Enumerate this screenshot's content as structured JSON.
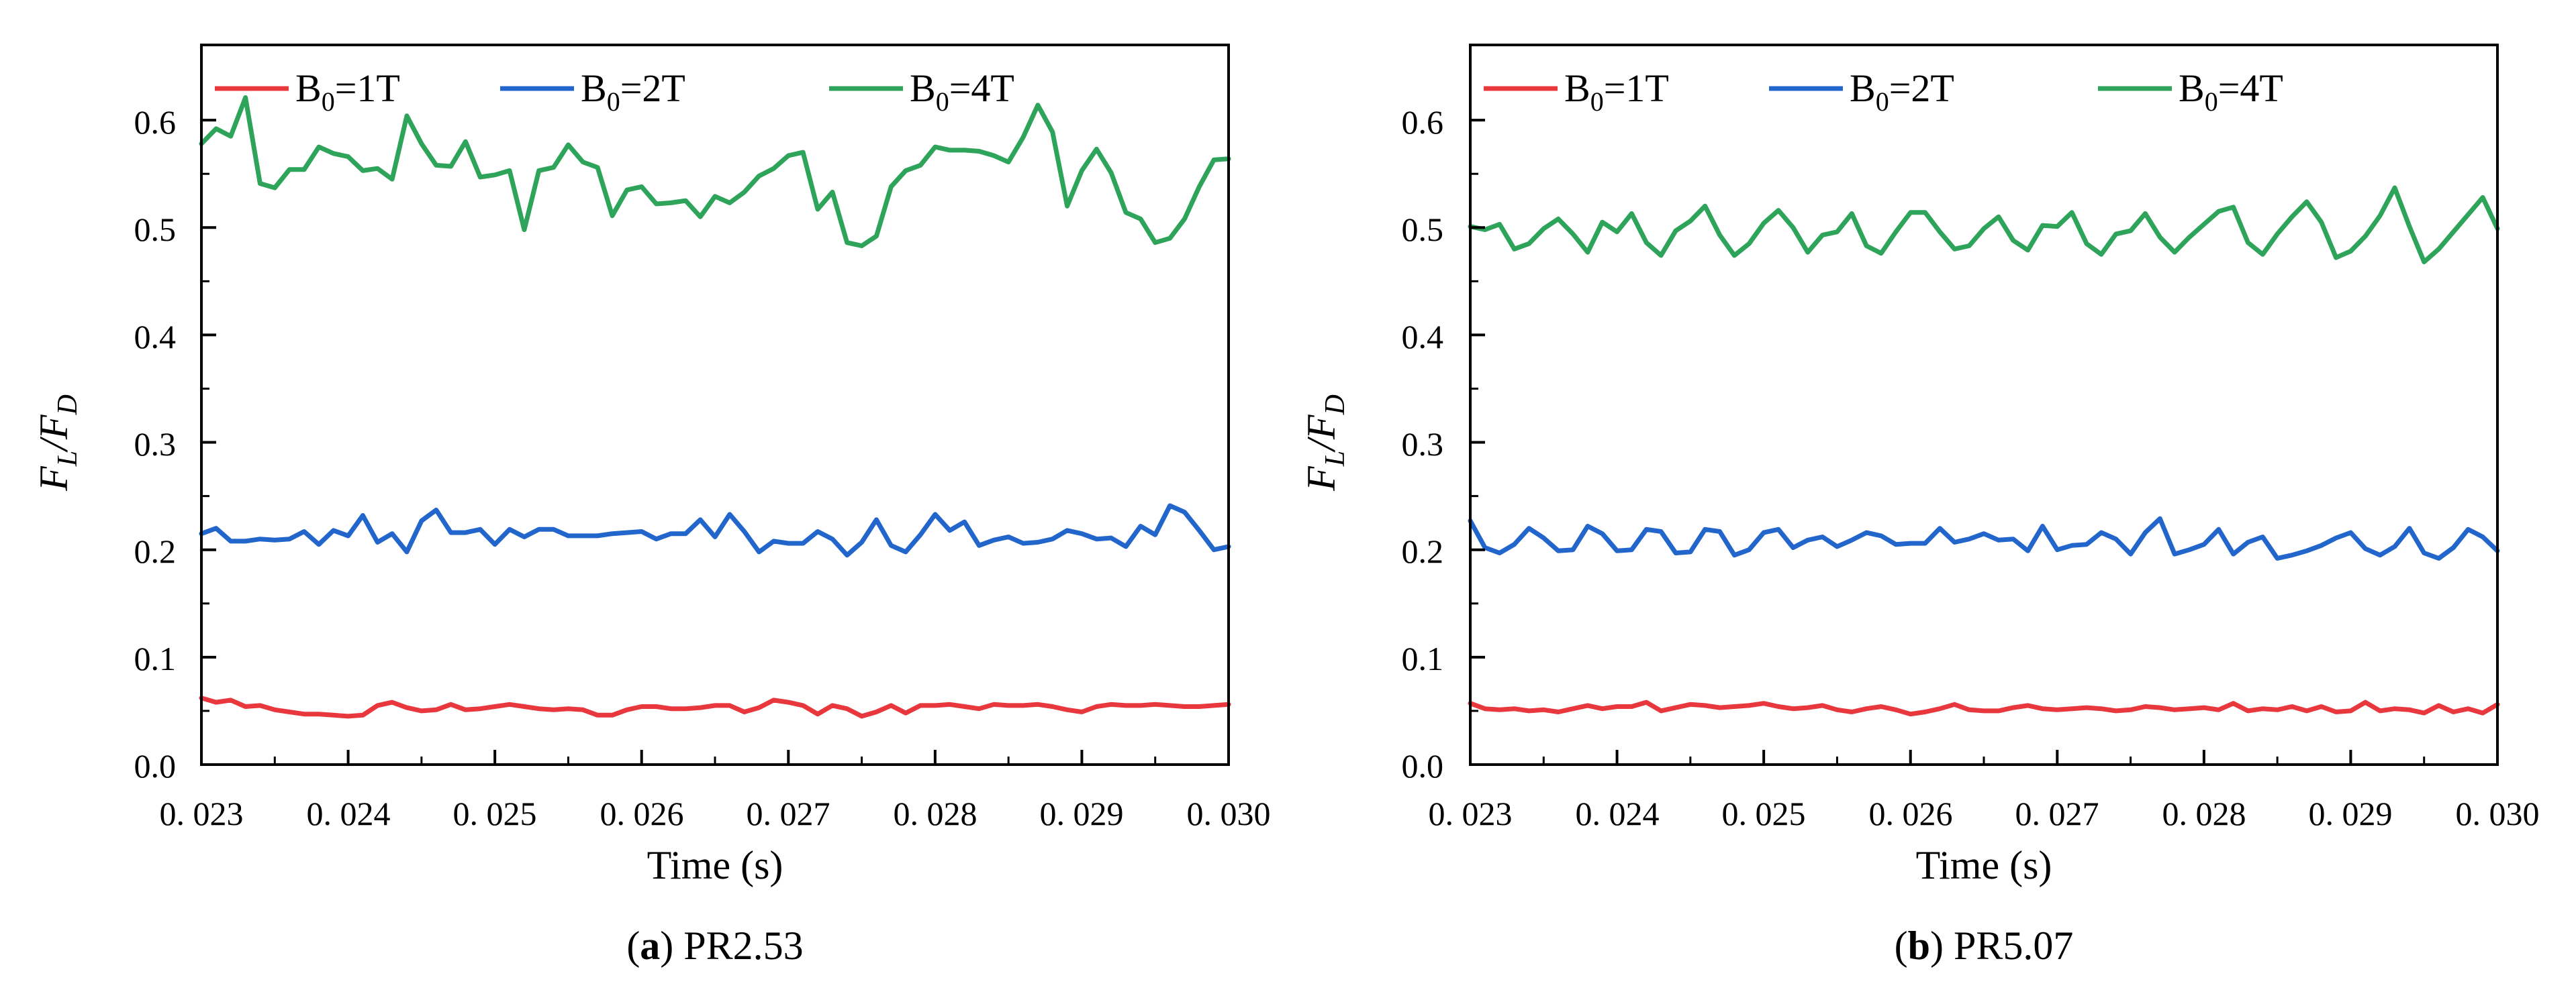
{
  "colors": {
    "B0_1T": "#e8383d",
    "B0_2T": "#2266cc",
    "B0_4T": "#2ea35a"
  },
  "chart_data": [
    {
      "id": "a",
      "type": "line",
      "caption": {
        "letter": "a",
        "text": "PR2.53"
      },
      "xlabel": "Time (s)",
      "ylabel": {
        "main": "F",
        "sub": "L",
        "slash": "/",
        "main2": "F",
        "sub2": "D"
      },
      "xlim": [
        0.023,
        0.03
      ],
      "ylim": [
        0.0,
        0.67
      ],
      "xticks": [
        {
          "value": 0.023,
          "label": "0. 023"
        },
        {
          "value": 0.024,
          "label": "0. 024"
        },
        {
          "value": 0.025,
          "label": "0. 025"
        },
        {
          "value": 0.026,
          "label": "0. 026"
        },
        {
          "value": 0.027,
          "label": "0. 027"
        },
        {
          "value": 0.028,
          "label": "0. 028"
        },
        {
          "value": 0.029,
          "label": "0. 029"
        },
        {
          "value": 0.03,
          "label": "0. 030"
        }
      ],
      "yticks": [
        {
          "value": 0.0,
          "label": "0.0"
        },
        {
          "value": 0.1,
          "label": "0.1"
        },
        {
          "value": 0.2,
          "label": "0.2"
        },
        {
          "value": 0.3,
          "label": "0.3"
        },
        {
          "value": 0.4,
          "label": "0.4"
        },
        {
          "value": 0.5,
          "label": "0.5"
        },
        {
          "value": 0.6,
          "label": "0.6"
        }
      ],
      "legend_position": "top",
      "x": [
        0.023,
        0.0231,
        0.0232,
        0.0233,
        0.0234,
        0.0235,
        0.0236,
        0.0237,
        0.0238,
        0.0239,
        0.024,
        0.0241,
        0.0242,
        0.0243,
        0.0244,
        0.0245,
        0.0246,
        0.0247,
        0.0248,
        0.0249,
        0.025,
        0.0251,
        0.0252,
        0.0253,
        0.0254,
        0.0255,
        0.0256,
        0.0257,
        0.0258,
        0.0259,
        0.026,
        0.0261,
        0.0262,
        0.0263,
        0.0264,
        0.0265,
        0.0266,
        0.0267,
        0.0268,
        0.0269,
        0.027,
        0.0271,
        0.0272,
        0.0273,
        0.0274,
        0.0275,
        0.0276,
        0.0277,
        0.0278,
        0.0279,
        0.028,
        0.0281,
        0.0282,
        0.0283,
        0.0284,
        0.0285,
        0.0286,
        0.0287,
        0.0288,
        0.0289,
        0.029,
        0.0291,
        0.0292,
        0.0293,
        0.0294,
        0.0295,
        0.0296,
        0.0297,
        0.0298,
        0.0299,
        0.03
      ],
      "series": [
        {
          "name": "B0=1T",
          "label_main": "B",
          "label_sub": "0",
          "label_rest": "=1T",
          "color_key": "B0_1T",
          "values": [
            0.062,
            0.058,
            0.06,
            0.054,
            0.055,
            0.051,
            0.049,
            0.047,
            0.047,
            0.046,
            0.045,
            0.046,
            0.055,
            0.058,
            0.053,
            0.05,
            0.051,
            0.056,
            0.051,
            0.052,
            0.054,
            0.056,
            0.054,
            0.052,
            0.051,
            0.052,
            0.051,
            0.046,
            0.046,
            0.051,
            0.054,
            0.054,
            0.052,
            0.052,
            0.053,
            0.055,
            0.055,
            0.049,
            0.053,
            0.06,
            0.058,
            0.055,
            0.047,
            0.055,
            0.052,
            0.045,
            0.049,
            0.055,
            0.048,
            0.055,
            0.055,
            0.056,
            0.054,
            0.052,
            0.056,
            0.055,
            0.055,
            0.056,
            0.054,
            0.051,
            0.049,
            0.054,
            0.056,
            0.055,
            0.055,
            0.056,
            0.055,
            0.054,
            0.054,
            0.055,
            0.056
          ]
        },
        {
          "name": "B0=2T",
          "label_main": "B",
          "label_sub": "0",
          "label_rest": "=2T",
          "color_key": "B0_2T",
          "values": [
            0.215,
            0.22,
            0.208,
            0.208,
            0.21,
            0.209,
            0.21,
            0.217,
            0.205,
            0.218,
            0.213,
            0.232,
            0.207,
            0.215,
            0.198,
            0.227,
            0.237,
            0.216,
            0.216,
            0.219,
            0.205,
            0.219,
            0.212,
            0.219,
            0.219,
            0.213,
            0.213,
            0.213,
            0.215,
            0.216,
            0.217,
            0.21,
            0.215,
            0.215,
            0.228,
            0.212,
            0.233,
            0.217,
            0.198,
            0.208,
            0.206,
            0.206,
            0.217,
            0.21,
            0.195,
            0.207,
            0.228,
            0.204,
            0.198,
            0.214,
            0.233,
            0.218,
            0.226,
            0.204,
            0.209,
            0.212,
            0.206,
            0.207,
            0.21,
            0.218,
            0.215,
            0.21,
            0.211,
            0.203,
            0.222,
            0.214,
            0.241,
            0.235,
            0.218,
            0.2,
            0.203
          ]
        },
        {
          "name": "B0=4T",
          "label_main": "B",
          "label_sub": "0",
          "label_rest": "=4T",
          "color_key": "B0_4T",
          "values": [
            0.578,
            0.592,
            0.585,
            0.621,
            0.541,
            0.537,
            0.554,
            0.554,
            0.575,
            0.569,
            0.566,
            0.553,
            0.555,
            0.545,
            0.604,
            0.578,
            0.558,
            0.557,
            0.58,
            0.547,
            0.549,
            0.553,
            0.498,
            0.553,
            0.556,
            0.577,
            0.561,
            0.556,
            0.511,
            0.535,
            0.538,
            0.522,
            0.523,
            0.525,
            0.51,
            0.529,
            0.523,
            0.533,
            0.548,
            0.555,
            0.567,
            0.57,
            0.517,
            0.533,
            0.486,
            0.483,
            0.492,
            0.538,
            0.553,
            0.558,
            0.575,
            0.572,
            0.572,
            0.571,
            0.567,
            0.561,
            0.584,
            0.614,
            0.589,
            0.52,
            0.553,
            0.573,
            0.551,
            0.514,
            0.508,
            0.486,
            0.49,
            0.508,
            0.538,
            0.563,
            0.564
          ]
        }
      ]
    },
    {
      "id": "b",
      "type": "line",
      "caption": {
        "letter": "b",
        "text": "PR5.07"
      },
      "xlabel": "Time (s)",
      "ylabel": {
        "main": "F",
        "sub": "L",
        "slash": "/",
        "main2": "F",
        "sub2": "D"
      },
      "xlim": [
        0.023,
        0.03
      ],
      "ylim": [
        0.0,
        0.67
      ],
      "xticks": [
        {
          "value": 0.023,
          "label": "0. 023"
        },
        {
          "value": 0.024,
          "label": "0. 024"
        },
        {
          "value": 0.025,
          "label": "0. 025"
        },
        {
          "value": 0.026,
          "label": "0. 026"
        },
        {
          "value": 0.027,
          "label": "0. 027"
        },
        {
          "value": 0.028,
          "label": "0. 028"
        },
        {
          "value": 0.029,
          "label": "0. 029"
        },
        {
          "value": 0.03,
          "label": "0. 030"
        }
      ],
      "yticks": [
        {
          "value": 0.0,
          "label": "0.0"
        },
        {
          "value": 0.1,
          "label": "0.1"
        },
        {
          "value": 0.2,
          "label": "0.2"
        },
        {
          "value": 0.3,
          "label": "0.3"
        },
        {
          "value": 0.4,
          "label": "0.4"
        },
        {
          "value": 0.5,
          "label": "0.5"
        },
        {
          "value": 0.6,
          "label": "0.6"
        }
      ],
      "legend_position": "top",
      "x": [
        0.023,
        0.0231,
        0.0232,
        0.0233,
        0.0234,
        0.0235,
        0.0236,
        0.0237,
        0.0238,
        0.0239,
        0.024,
        0.0241,
        0.0242,
        0.0243,
        0.0244,
        0.0245,
        0.0246,
        0.0247,
        0.0248,
        0.0249,
        0.025,
        0.0251,
        0.0252,
        0.0253,
        0.0254,
        0.0255,
        0.0256,
        0.0257,
        0.0258,
        0.0259,
        0.026,
        0.0261,
        0.0262,
        0.0263,
        0.0264,
        0.0265,
        0.0266,
        0.0267,
        0.0268,
        0.0269,
        0.027,
        0.0271,
        0.0272,
        0.0273,
        0.0274,
        0.0275,
        0.0276,
        0.0277,
        0.0278,
        0.0279,
        0.028,
        0.0281,
        0.0282,
        0.0283,
        0.0284,
        0.0285,
        0.0286,
        0.0287,
        0.0288,
        0.0289,
        0.029,
        0.0291,
        0.0292,
        0.0293,
        0.0294,
        0.0295,
        0.0296,
        0.0297,
        0.0298,
        0.0299,
        0.03
      ],
      "series": [
        {
          "name": "B0=1T",
          "label_main": "B",
          "label_sub": "0",
          "label_rest": "=1T",
          "color_key": "B0_1T",
          "values": [
            0.057,
            0.052,
            0.051,
            0.052,
            0.05,
            0.051,
            0.049,
            0.052,
            0.055,
            0.052,
            0.054,
            0.054,
            0.058,
            0.05,
            0.053,
            0.056,
            0.055,
            0.053,
            0.054,
            0.055,
            0.057,
            0.054,
            0.052,
            0.053,
            0.055,
            0.051,
            0.049,
            0.052,
            0.054,
            0.051,
            0.047,
            0.049,
            0.052,
            0.056,
            0.051,
            0.05,
            0.05,
            0.053,
            0.055,
            0.052,
            0.051,
            0.052,
            0.053,
            0.052,
            0.05,
            0.051,
            0.054,
            0.053,
            0.051,
            0.052,
            0.053,
            0.051,
            0.057,
            0.05,
            0.052,
            0.051,
            0.054,
            0.05,
            0.054,
            0.049,
            0.05,
            0.058,
            0.05,
            0.052,
            0.051,
            0.048,
            0.055,
            0.049,
            0.052,
            0.048,
            0.056
          ]
        },
        {
          "name": "B0=2T",
          "label_main": "B",
          "label_sub": "0",
          "label_rest": "=2T",
          "color_key": "B0_2T",
          "values": [
            0.227,
            0.202,
            0.197,
            0.205,
            0.22,
            0.211,
            0.199,
            0.2,
            0.222,
            0.215,
            0.199,
            0.2,
            0.219,
            0.217,
            0.197,
            0.198,
            0.219,
            0.217,
            0.195,
            0.2,
            0.216,
            0.219,
            0.202,
            0.209,
            0.212,
            0.203,
            0.209,
            0.216,
            0.213,
            0.205,
            0.206,
            0.206,
            0.22,
            0.207,
            0.21,
            0.215,
            0.209,
            0.21,
            0.199,
            0.222,
            0.2,
            0.204,
            0.205,
            0.216,
            0.21,
            0.196,
            0.216,
            0.229,
            0.196,
            0.2,
            0.205,
            0.219,
            0.196,
            0.207,
            0.212,
            0.192,
            0.195,
            0.199,
            0.204,
            0.211,
            0.216,
            0.201,
            0.195,
            0.203,
            0.22,
            0.197,
            0.192,
            0.202,
            0.219,
            0.212,
            0.199
          ]
        },
        {
          "name": "B0=4T",
          "label_main": "B",
          "label_sub": "0",
          "label_rest": "=4T",
          "color_key": "B0_4T",
          "values": [
            0.501,
            0.498,
            0.503,
            0.48,
            0.485,
            0.499,
            0.508,
            0.494,
            0.477,
            0.505,
            0.496,
            0.513,
            0.486,
            0.474,
            0.497,
            0.506,
            0.52,
            0.493,
            0.474,
            0.485,
            0.504,
            0.516,
            0.5,
            0.477,
            0.493,
            0.496,
            0.513,
            0.483,
            0.476,
            0.496,
            0.514,
            0.514,
            0.496,
            0.48,
            0.483,
            0.499,
            0.51,
            0.488,
            0.479,
            0.502,
            0.501,
            0.514,
            0.485,
            0.475,
            0.494,
            0.497,
            0.513,
            0.491,
            0.477,
            0.491,
            0.503,
            0.515,
            0.519,
            0.486,
            0.475,
            0.494,
            0.51,
            0.524,
            0.505,
            0.472,
            0.478,
            0.492,
            0.511,
            0.537,
            0.501,
            0.468,
            0.48,
            0.496,
            0.512,
            0.528,
            0.499
          ]
        }
      ]
    }
  ]
}
